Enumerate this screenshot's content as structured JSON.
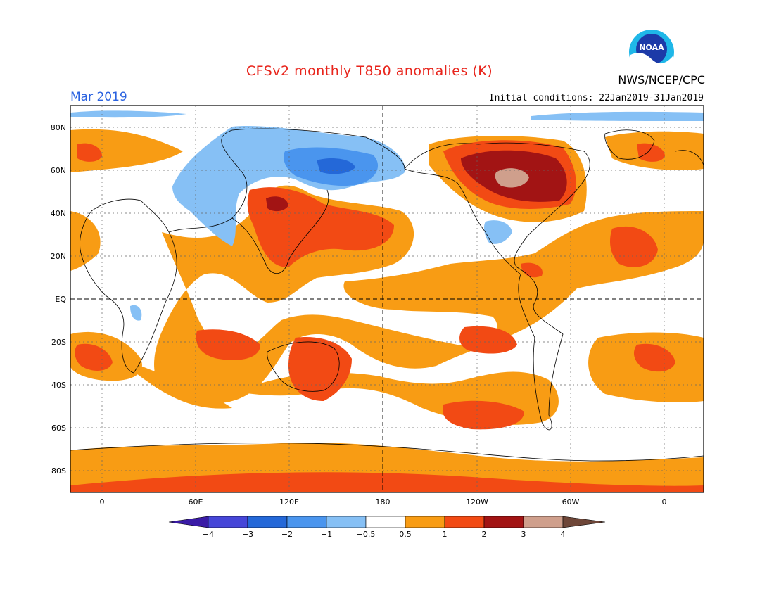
{
  "header": {
    "title": "CFSv2 monthly T850 anomalies (K)",
    "month": "Mar 2019",
    "agency": "NWS/NCEP/CPC",
    "initial_conditions": "Initial conditions: 22Jan2019-31Jan2019",
    "logo_text": "NOAA"
  },
  "axes": {
    "lat_labels": [
      "80N",
      "60N",
      "40N",
      "20N",
      "EQ",
      "20S",
      "40S",
      "60S",
      "80S"
    ],
    "lon_labels": [
      "0",
      "60E",
      "120E",
      "180",
      "120W",
      "60W",
      "0"
    ]
  },
  "colorbar": {
    "labels": [
      "−4",
      "−3",
      "−2",
      "−1",
      "−0.5",
      "0.5",
      "1",
      "2",
      "3",
      "4"
    ],
    "colors": [
      "#3a1ba6",
      "#4646d8",
      "#2468d8",
      "#4a95ee",
      "#86c0f5",
      "#ffffff",
      "#f89c14",
      "#f24a14",
      "#a21414",
      "#cf9f8c",
      "#6e4638"
    ]
  }
}
